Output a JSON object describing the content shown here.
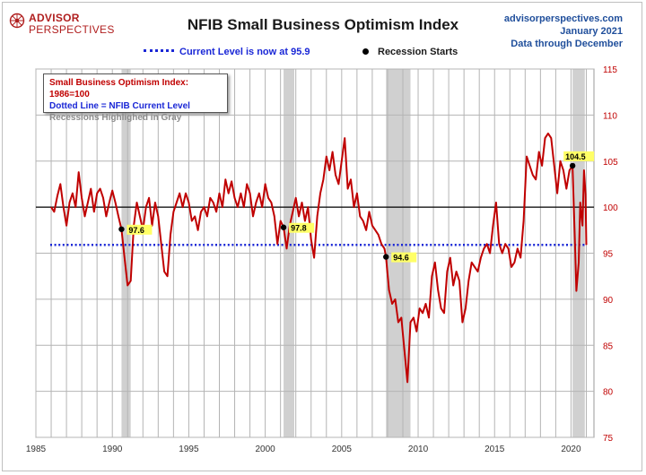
{
  "header": {
    "logo_top": "ADVISOR",
    "logo_bottom": "PERSPECTIVES",
    "title": "NFIB Small Business Optimism Index",
    "source_site": "advisorperspectives.com",
    "source_date": "January 2021",
    "source_data_through": "Data through December"
  },
  "legend": {
    "current_level": "Current Level is now at 95.9",
    "recession_starts": "Recession Starts"
  },
  "info_box": {
    "line1": "Small Business Optimism Index: 1986=100",
    "line2": "Dotted Line = NFIB Current Level",
    "line3": "Recessions Highlighed in Gray"
  },
  "colors": {
    "series": "#c00000",
    "current_line": "#1a27d6",
    "recession_band": "#c8c8c8",
    "annotation_fill": "#ffff66",
    "title_blue": "#1f4e9b"
  },
  "chart_data": {
    "type": "line",
    "title": "NFIB Small Business Optimism Index",
    "xlabel": "",
    "ylabel": "",
    "xlim": [
      1985,
      2021.5
    ],
    "ylim": [
      75,
      115
    ],
    "x_ticks": [
      "1985",
      "1990",
      "1995",
      "2000",
      "2005",
      "2010",
      "2015",
      "2020"
    ],
    "y_ticks": [
      "75",
      "80",
      "85",
      "90",
      "95",
      "100",
      "105",
      "110",
      "115"
    ],
    "y_axis_side": "right",
    "grid": true,
    "reference_lines": [
      {
        "name": "1986 baseline",
        "y": 100,
        "style": "solid",
        "color": "#000000"
      },
      {
        "name": "Current Level",
        "y": 95.9,
        "style": "dotted",
        "color": "#1a27d6"
      }
    ],
    "recessions": [
      {
        "start": 1990.6,
        "end": 1991.2
      },
      {
        "start": 2001.2,
        "end": 2001.9
      },
      {
        "start": 2007.9,
        "end": 2009.5
      },
      {
        "start": 2020.1,
        "end": 2020.9
      }
    ],
    "recession_markers": [
      {
        "x": 1990.6,
        "y": 97.6,
        "label": "97.6"
      },
      {
        "x": 2001.2,
        "y": 97.8,
        "label": "97.8"
      },
      {
        "x": 2007.9,
        "y": 94.6,
        "label": "94.6"
      },
      {
        "x": 2020.1,
        "y": 104.5,
        "label": "104.5"
      }
    ],
    "series": [
      {
        "name": "Small Business Optimism Index",
        "points": [
          [
            1986.0,
            100.0
          ],
          [
            1986.2,
            99.5
          ],
          [
            1986.4,
            101.2
          ],
          [
            1986.6,
            102.5
          ],
          [
            1986.8,
            100.0
          ],
          [
            1987.0,
            98.0
          ],
          [
            1987.2,
            100.5
          ],
          [
            1987.4,
            101.5
          ],
          [
            1987.6,
            100.0
          ],
          [
            1987.8,
            103.8
          ],
          [
            1988.0,
            101.0
          ],
          [
            1988.2,
            99.0
          ],
          [
            1988.4,
            100.5
          ],
          [
            1988.6,
            102.0
          ],
          [
            1988.8,
            99.5
          ],
          [
            1989.0,
            101.5
          ],
          [
            1989.2,
            102.0
          ],
          [
            1989.4,
            101.0
          ],
          [
            1989.6,
            99.0
          ],
          [
            1989.8,
            100.5
          ],
          [
            1990.0,
            101.8
          ],
          [
            1990.2,
            100.5
          ],
          [
            1990.4,
            99.0
          ],
          [
            1990.6,
            97.6
          ],
          [
            1990.8,
            94.5
          ],
          [
            1991.0,
            91.5
          ],
          [
            1991.2,
            92.0
          ],
          [
            1991.4,
            98.0
          ],
          [
            1991.6,
            100.5
          ],
          [
            1991.8,
            99.0
          ],
          [
            1992.0,
            97.5
          ],
          [
            1992.2,
            100.0
          ],
          [
            1992.4,
            101.0
          ],
          [
            1992.6,
            98.0
          ],
          [
            1992.8,
            100.5
          ],
          [
            1993.0,
            99.0
          ],
          [
            1993.2,
            96.0
          ],
          [
            1993.4,
            93.0
          ],
          [
            1993.6,
            92.5
          ],
          [
            1993.8,
            97.0
          ],
          [
            1994.0,
            99.5
          ],
          [
            1994.2,
            100.5
          ],
          [
            1994.4,
            101.5
          ],
          [
            1994.6,
            100.0
          ],
          [
            1994.8,
            101.5
          ],
          [
            1995.0,
            100.5
          ],
          [
            1995.2,
            98.5
          ],
          [
            1995.4,
            99.0
          ],
          [
            1995.6,
            97.5
          ],
          [
            1995.8,
            99.5
          ],
          [
            1996.0,
            100.0
          ],
          [
            1996.2,
            99.0
          ],
          [
            1996.4,
            101.0
          ],
          [
            1996.6,
            100.5
          ],
          [
            1996.8,
            99.5
          ],
          [
            1997.0,
            101.5
          ],
          [
            1997.2,
            100.0
          ],
          [
            1997.4,
            103.0
          ],
          [
            1997.6,
            101.5
          ],
          [
            1997.8,
            102.8
          ],
          [
            1998.0,
            101.0
          ],
          [
            1998.2,
            100.0
          ],
          [
            1998.4,
            101.5
          ],
          [
            1998.6,
            100.0
          ],
          [
            1998.8,
            102.5
          ],
          [
            1999.0,
            101.5
          ],
          [
            1999.2,
            99.0
          ],
          [
            1999.4,
            100.5
          ],
          [
            1999.6,
            101.5
          ],
          [
            1999.8,
            100.0
          ],
          [
            2000.0,
            102.5
          ],
          [
            2000.2,
            101.0
          ],
          [
            2000.4,
            100.5
          ],
          [
            2000.6,
            99.0
          ],
          [
            2000.8,
            96.0
          ],
          [
            2001.0,
            98.5
          ],
          [
            2001.2,
            97.8
          ],
          [
            2001.4,
            95.5
          ],
          [
            2001.6,
            98.0
          ],
          [
            2001.8,
            99.5
          ],
          [
            2002.0,
            101.0
          ],
          [
            2002.2,
            99.0
          ],
          [
            2002.4,
            100.5
          ],
          [
            2002.6,
            98.5
          ],
          [
            2002.8,
            100.0
          ],
          [
            2003.0,
            96.5
          ],
          [
            2003.2,
            94.5
          ],
          [
            2003.4,
            99.0
          ],
          [
            2003.6,
            101.5
          ],
          [
            2003.8,
            103.0
          ],
          [
            2004.0,
            105.5
          ],
          [
            2004.2,
            104.0
          ],
          [
            2004.4,
            106.0
          ],
          [
            2004.6,
            103.5
          ],
          [
            2004.8,
            102.5
          ],
          [
            2005.0,
            105.0
          ],
          [
            2005.2,
            107.5
          ],
          [
            2005.4,
            102.0
          ],
          [
            2005.6,
            103.0
          ],
          [
            2005.8,
            100.0
          ],
          [
            2006.0,
            101.5
          ],
          [
            2006.2,
            99.0
          ],
          [
            2006.4,
            98.5
          ],
          [
            2006.6,
            97.5
          ],
          [
            2006.8,
            99.5
          ],
          [
            2007.0,
            98.0
          ],
          [
            2007.2,
            97.5
          ],
          [
            2007.4,
            97.0
          ],
          [
            2007.6,
            96.0
          ],
          [
            2007.8,
            95.5
          ],
          [
            2007.9,
            94.6
          ],
          [
            2008.1,
            91.0
          ],
          [
            2008.3,
            89.5
          ],
          [
            2008.5,
            90.0
          ],
          [
            2008.7,
            87.5
          ],
          [
            2008.9,
            88.0
          ],
          [
            2009.1,
            84.5
          ],
          [
            2009.3,
            81.0
          ],
          [
            2009.5,
            87.5
          ],
          [
            2009.7,
            88.0
          ],
          [
            2009.9,
            86.5
          ],
          [
            2010.1,
            89.0
          ],
          [
            2010.3,
            88.5
          ],
          [
            2010.5,
            89.5
          ],
          [
            2010.7,
            88.0
          ],
          [
            2010.9,
            92.5
          ],
          [
            2011.1,
            94.0
          ],
          [
            2011.3,
            91.0
          ],
          [
            2011.5,
            89.0
          ],
          [
            2011.7,
            88.5
          ],
          [
            2011.9,
            93.0
          ],
          [
            2012.1,
            94.5
          ],
          [
            2012.3,
            91.5
          ],
          [
            2012.5,
            93.0
          ],
          [
            2012.7,
            92.0
          ],
          [
            2012.9,
            87.5
          ],
          [
            2013.1,
            89.0
          ],
          [
            2013.3,
            92.0
          ],
          [
            2013.5,
            94.0
          ],
          [
            2013.7,
            93.5
          ],
          [
            2013.9,
            93.0
          ],
          [
            2014.1,
            94.5
          ],
          [
            2014.3,
            95.5
          ],
          [
            2014.5,
            96.0
          ],
          [
            2014.7,
            95.0
          ],
          [
            2014.9,
            98.0
          ],
          [
            2015.1,
            100.5
          ],
          [
            2015.3,
            96.0
          ],
          [
            2015.5,
            95.0
          ],
          [
            2015.7,
            96.0
          ],
          [
            2015.9,
            95.5
          ],
          [
            2016.1,
            93.5
          ],
          [
            2016.3,
            94.0
          ],
          [
            2016.5,
            95.5
          ],
          [
            2016.7,
            94.5
          ],
          [
            2016.9,
            98.5
          ],
          [
            2017.1,
            105.5
          ],
          [
            2017.3,
            104.5
          ],
          [
            2017.5,
            103.5
          ],
          [
            2017.7,
            103.0
          ],
          [
            2017.9,
            106.0
          ],
          [
            2018.1,
            104.5
          ],
          [
            2018.3,
            107.5
          ],
          [
            2018.5,
            108.0
          ],
          [
            2018.7,
            107.5
          ],
          [
            2018.9,
            104.5
          ],
          [
            2019.1,
            101.5
          ],
          [
            2019.3,
            105.0
          ],
          [
            2019.5,
            104.0
          ],
          [
            2019.7,
            102.0
          ],
          [
            2019.9,
            104.0
          ],
          [
            2020.1,
            104.5
          ],
          [
            2020.25,
            96.5
          ],
          [
            2020.35,
            90.9
          ],
          [
            2020.5,
            94.0
          ],
          [
            2020.6,
            100.5
          ],
          [
            2020.75,
            98.0
          ],
          [
            2020.85,
            104.0
          ],
          [
            2020.95,
            101.4
          ],
          [
            2021.0,
            95.9
          ]
        ]
      }
    ]
  }
}
